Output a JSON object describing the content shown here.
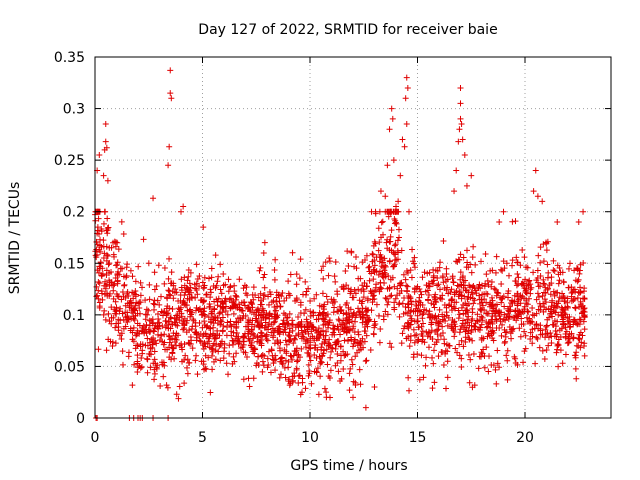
{
  "chart_data": {
    "type": "scatter",
    "title": "Day 127 of 2022, SRMTID for receiver baie",
    "xlabel": "GPS time / hours",
    "ylabel": "SRMTID / TECUs",
    "xlim": [
      0,
      24
    ],
    "ylim": [
      0,
      0.35
    ],
    "xticks": [
      0,
      5,
      10,
      15,
      20
    ],
    "yticks": [
      0,
      0.05,
      0.1,
      0.15,
      0.2,
      0.25,
      0.3,
      0.35
    ],
    "xtick_labels": [
      "0",
      "5",
      "10",
      "15",
      "20"
    ],
    "ytick_labels": [
      "0",
      "0.05",
      "0.1",
      "0.15",
      "0.2",
      "0.25",
      "0.3",
      "0.35"
    ],
    "grid": true,
    "marker": "+",
    "color": "#e00000",
    "background_trend": {
      "x": [
        0,
        0.5,
        1,
        2,
        3,
        4,
        5,
        6,
        7,
        8,
        9,
        10,
        11,
        12,
        12.5,
        13,
        13.5,
        14,
        14.5,
        15,
        16,
        17,
        18,
        19,
        20,
        21,
        22,
        22.8
      ],
      "median": [
        0.17,
        0.14,
        0.12,
        0.08,
        0.085,
        0.1,
        0.095,
        0.09,
        0.085,
        0.085,
        0.08,
        0.08,
        0.085,
        0.09,
        0.095,
        0.12,
        0.15,
        0.15,
        0.11,
        0.1,
        0.1,
        0.11,
        0.1,
        0.1,
        0.11,
        0.105,
        0.1,
        0.095
      ],
      "spread": [
        0.05,
        0.045,
        0.04,
        0.035,
        0.035,
        0.035,
        0.033,
        0.032,
        0.032,
        0.032,
        0.032,
        0.032,
        0.033,
        0.035,
        0.04,
        0.045,
        0.045,
        0.045,
        0.04,
        0.035,
        0.035,
        0.04,
        0.035,
        0.035,
        0.035,
        0.035,
        0.035,
        0.03
      ],
      "count": 2600,
      "x_end": 22.8
    },
    "highlight_points": [
      {
        "x": 3.5,
        "y": 0.337
      },
      {
        "x": 3.5,
        "y": 0.315
      },
      {
        "x": 3.55,
        "y": 0.31
      },
      {
        "x": 3.45,
        "y": 0.263
      },
      {
        "x": 3.4,
        "y": 0.245
      },
      {
        "x": 0.5,
        "y": 0.285
      },
      {
        "x": 0.5,
        "y": 0.268
      },
      {
        "x": 0.55,
        "y": 0.262
      },
      {
        "x": 0.45,
        "y": 0.26
      },
      {
        "x": 0.2,
        "y": 0.255
      },
      {
        "x": 0.1,
        "y": 0.24
      },
      {
        "x": 0.4,
        "y": 0.235
      },
      {
        "x": 0.6,
        "y": 0.23
      },
      {
        "x": 2.7,
        "y": 0.213
      },
      {
        "x": 4.1,
        "y": 0.205
      },
      {
        "x": 4.0,
        "y": 0.2
      },
      {
        "x": 14.5,
        "y": 0.33
      },
      {
        "x": 14.55,
        "y": 0.32
      },
      {
        "x": 14.45,
        "y": 0.31
      },
      {
        "x": 13.8,
        "y": 0.3
      },
      {
        "x": 13.85,
        "y": 0.29
      },
      {
        "x": 14.5,
        "y": 0.285
      },
      {
        "x": 13.7,
        "y": 0.28
      },
      {
        "x": 14.3,
        "y": 0.27
      },
      {
        "x": 14.4,
        "y": 0.263
      },
      {
        "x": 13.9,
        "y": 0.25
      },
      {
        "x": 13.6,
        "y": 0.245
      },
      {
        "x": 14.2,
        "y": 0.235
      },
      {
        "x": 13.3,
        "y": 0.22
      },
      {
        "x": 13.5,
        "y": 0.215
      },
      {
        "x": 14.1,
        "y": 0.21
      },
      {
        "x": 14.0,
        "y": 0.205
      },
      {
        "x": 17.0,
        "y": 0.32
      },
      {
        "x": 17.0,
        "y": 0.305
      },
      {
        "x": 17.0,
        "y": 0.29
      },
      {
        "x": 17.05,
        "y": 0.285
      },
      {
        "x": 16.95,
        "y": 0.28
      },
      {
        "x": 17.1,
        "y": 0.27
      },
      {
        "x": 16.9,
        "y": 0.268
      },
      {
        "x": 17.2,
        "y": 0.255
      },
      {
        "x": 16.8,
        "y": 0.24
      },
      {
        "x": 17.5,
        "y": 0.235
      },
      {
        "x": 17.3,
        "y": 0.225
      },
      {
        "x": 16.7,
        "y": 0.22
      },
      {
        "x": 20.5,
        "y": 0.24
      },
      {
        "x": 20.4,
        "y": 0.22
      },
      {
        "x": 20.6,
        "y": 0.215
      },
      {
        "x": 20.8,
        "y": 0.21
      },
      {
        "x": 22.7,
        "y": 0.2
      },
      {
        "x": 22.5,
        "y": 0.19
      },
      {
        "x": 7.9,
        "y": 0.17
      },
      {
        "x": 7.85,
        "y": 0.16
      },
      {
        "x": 19.0,
        "y": 0.2
      },
      {
        "x": 18.8,
        "y": 0.19
      },
      {
        "x": 21.5,
        "y": 0.19
      },
      {
        "x": 12.6,
        "y": 0.01
      },
      {
        "x": 12.0,
        "y": 0.02
      },
      {
        "x": 3.8,
        "y": 0.023
      },
      {
        "x": 13.0,
        "y": 0.03
      }
    ],
    "zero_points": [
      {
        "x": 0.05,
        "y": 0
      },
      {
        "x": 0.1,
        "y": 0
      },
      {
        "x": 1.6,
        "y": 0
      },
      {
        "x": 1.8,
        "y": 0
      },
      {
        "x": 2.0,
        "y": 0
      },
      {
        "x": 2.1,
        "y": 0
      },
      {
        "x": 2.2,
        "y": 0
      },
      {
        "x": 2.7,
        "y": 0
      },
      {
        "x": 3.4,
        "y": 0
      }
    ]
  }
}
